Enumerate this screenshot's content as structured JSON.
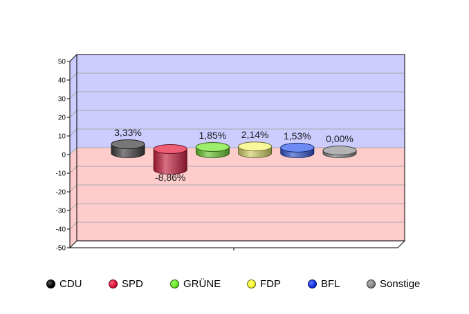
{
  "chart_data": {
    "type": "bar",
    "categories": [
      "CDU",
      "SPD",
      "GRÜNE",
      "FDP",
      "BFL",
      "Sonstige"
    ],
    "values": [
      3.33,
      -8.86,
      1.85,
      2.14,
      1.53,
      0.0
    ],
    "value_labels": [
      "3,33%",
      "-8,86%",
      "1,85%",
      "2,14%",
      "1,53%",
      "0,00%"
    ],
    "colors": [
      "#4a4a4a",
      "#e8284a",
      "#7de83a",
      "#f5f57a",
      "#3c64f0",
      "#9a9a9a"
    ],
    "legend_colors": [
      "#000000",
      "#e8103a",
      "#66ee22",
      "#ffff33",
      "#1133ee",
      "#888888"
    ],
    "ylim": [
      -50,
      50
    ],
    "yticks": [
      50,
      40,
      30,
      20,
      10,
      0,
      -10,
      -20,
      -30,
      -40,
      -50
    ],
    "background_positive": "#ccccff",
    "background_negative": "#ffcccc",
    "grid": true,
    "legend_position": "bottom",
    "title": "",
    "xlabel": "",
    "ylabel": ""
  }
}
